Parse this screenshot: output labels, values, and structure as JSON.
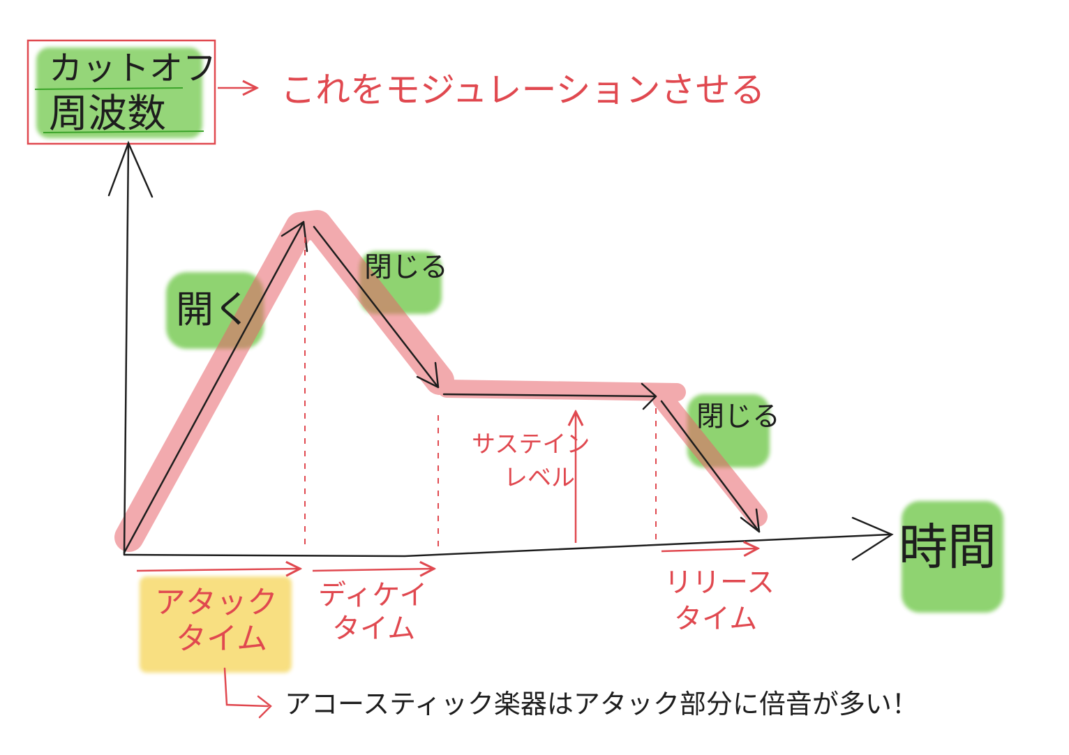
{
  "y_axis_label": {
    "line1": "カットオフ",
    "line2": "周波数"
  },
  "modulation_note": "これをモジュレーションさせる",
  "x_axis_label": "時間",
  "phase_labels": {
    "open": "開く",
    "close_after_peak": "閉じる",
    "close_release": "閉じる"
  },
  "sustain_level": {
    "line1": "サステイン",
    "line2": "レベル"
  },
  "time_labels": {
    "attack": {
      "line1": "アタック",
      "line2": "タイム"
    },
    "decay": {
      "line1": "ディケイ",
      "line2": "タイム"
    },
    "release": {
      "line1": "リリース",
      "line2": "タイム"
    }
  },
  "footnote": "アコースティック楽器はアタック部分に倍音が多い！",
  "colors": {
    "envelope_highlight": "#e8646b",
    "annotation_red": "#e0484f",
    "green_marker": "#6cc644",
    "yellow_marker": "#f5d55a",
    "ink": "#1d1d1d"
  }
}
